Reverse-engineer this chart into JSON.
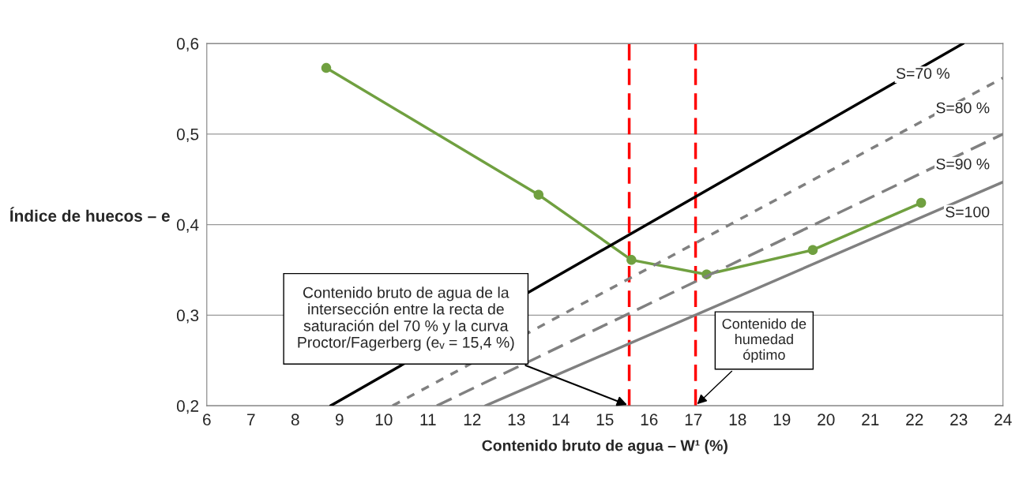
{
  "chart_data": {
    "type": "line",
    "xlabel": "Contenido bruto de agua – W¹ (%)",
    "ylabel": "Índice de huecos – e",
    "xlim": [
      6,
      24
    ],
    "xticks": [
      6,
      7,
      8,
      9,
      10,
      11,
      12,
      13,
      14,
      15,
      16,
      17,
      18,
      19,
      20,
      21,
      22,
      23,
      24
    ],
    "ylim": [
      0.2,
      0.6
    ],
    "yticks": [
      {
        "value": 0.2,
        "label": "0,2"
      },
      {
        "value": 0.3,
        "label": "0,3"
      },
      {
        "value": 0.4,
        "label": "0,4"
      },
      {
        "value": 0.5,
        "label": "0,5"
      },
      {
        "value": 0.6,
        "label": "0,6"
      }
    ],
    "grid": "y",
    "legend": false,
    "series": [
      {
        "color": "#70a040",
        "marker": "circle",
        "line_style": "solid",
        "x": [
          8.7,
          13.5,
          15.6,
          17.3,
          19.7,
          22.15
        ],
        "values": [
          0.573,
          0.433,
          0.361,
          0.345,
          0.372,
          0.424
        ]
      },
      {
        "name": "S=70 %",
        "color": "#000000",
        "marker": "none",
        "line_style": "solid",
        "x": [
          8.8,
          23.1
        ],
        "values": [
          0.2,
          0.6
        ]
      },
      {
        "name": "S=80 %",
        "color": "#808080",
        "marker": "none",
        "line_style": "dotted",
        "x": [
          10.2,
          24
        ],
        "values": [
          0.2,
          0.562
        ]
      },
      {
        "name": "S=90 %",
        "color": "#808080",
        "marker": "none",
        "line_style": "dashed",
        "x": [
          11.2,
          24
        ],
        "values": [
          0.2,
          0.5
        ]
      },
      {
        "name": "S=100",
        "color": "#808080",
        "marker": "none",
        "line_style": "solid",
        "x": [
          12.3,
          24
        ],
        "values": [
          0.2,
          0.447
        ]
      }
    ],
    "ref_lines": [
      {
        "axis": "x",
        "value": 15.55,
        "color": "#ff0000",
        "line_style": "dashed"
      },
      {
        "axis": "x",
        "value": 17.05,
        "color": "#ff0000",
        "line_style": "dashed"
      }
    ],
    "annotations": [
      "Contenido bruto de agua de la\nintersección entre la recta de\nsaturación del 70 % y la curva\nProctor/Fagerberg (eᵥ = 15,4 %)",
      {
        "text": "Contenido de\nhumedad\nóptimo",
        "x": 17.05,
        "y": 0.2
      }
    ]
  }
}
